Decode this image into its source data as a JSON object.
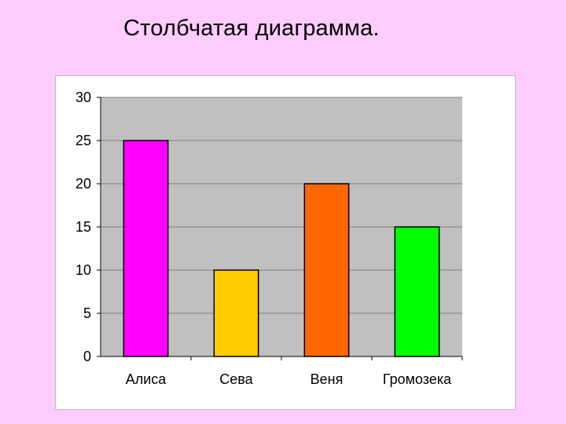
{
  "slide": {
    "title": "Столбчатая диаграмма."
  },
  "chart_data": {
    "type": "bar",
    "title": "",
    "xlabel": "",
    "ylabel": "",
    "categories": [
      "Алиса",
      "Сева",
      "Веня",
      "Громозека"
    ],
    "values": [
      25,
      10,
      20,
      15
    ],
    "ylim": [
      0,
      30
    ],
    "yticks": [
      0,
      5,
      10,
      15,
      20,
      25,
      30
    ],
    "grid": true,
    "legend": "none",
    "colors": {
      "plot_background": "#c0c0c0",
      "gridline": "#808080",
      "bar_outline": "#000000",
      "bars": [
        "#ff00ff",
        "#ffcc00",
        "#ff6600",
        "#00ff00"
      ]
    }
  }
}
